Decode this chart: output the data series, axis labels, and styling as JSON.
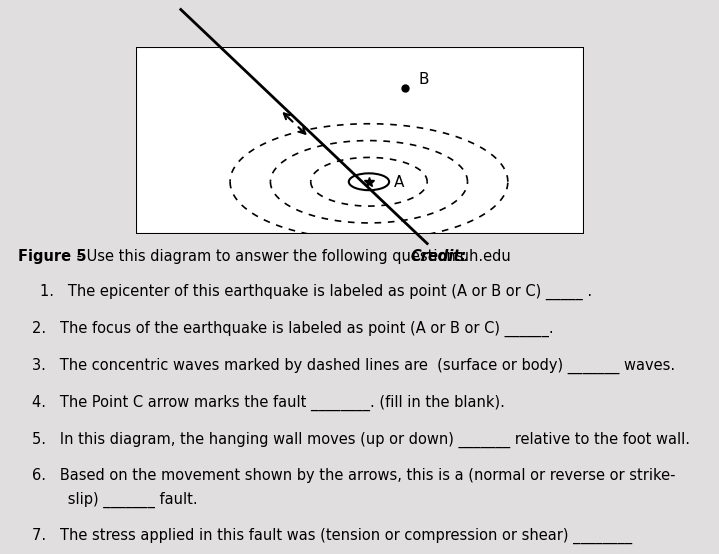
{
  "fig_bg": "#e0dede",
  "diagram_bg": "#f0efef",
  "box_bg": "white",
  "fault_color": "black",
  "arc_color": "black",
  "text_color": "black",
  "caption_figure": "Figure 5",
  "caption_middle": " - Use this diagram to answer the following questions. ",
  "caption_credit_label": "Credit:",
  "caption_credit_val": " uh.edu",
  "q1": "1.   The epicenter of this earthquake is labeled as point (A or B or C) _____ .",
  "q2": "2.   The focus of the earthquake is labeled as point (A or B or C) ______.",
  "q3": "3.   The concentric waves marked by dashed lines are  (surface or body) _______ waves.",
  "q4": "4.   The Point C arrow marks the fault ________. (fill in the blank).",
  "q5": "5.   In this diagram, the hanging wall moves (up or down) _______ relative to the foot wall.",
  "q6a": "6.   Based on the movement shown by the arrows, this is a (normal or reverse or strike-",
  "q6b": "      slip) _______ fault.",
  "q7": "7.   The stress applied in this fault was (tension or compression or shear) ________"
}
